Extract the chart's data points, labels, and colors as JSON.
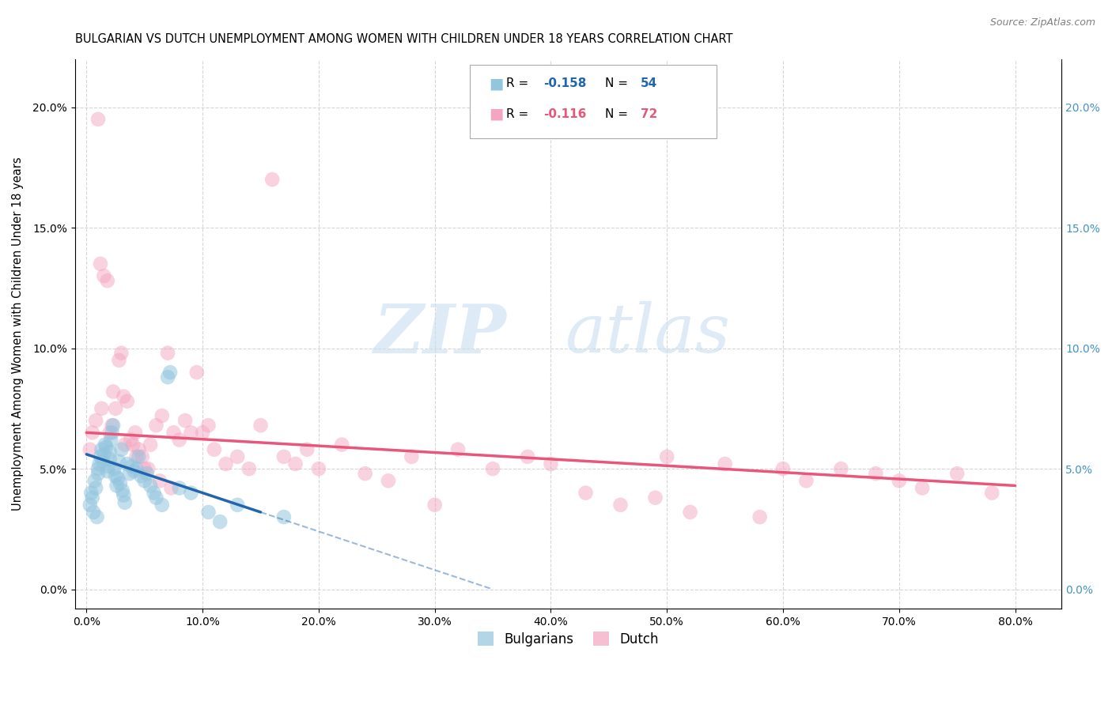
{
  "title": "BULGARIAN VS DUTCH UNEMPLOYMENT AMONG WOMEN WITH CHILDREN UNDER 18 YEARS CORRELATION CHART",
  "source": "Source: ZipAtlas.com",
  "ylabel": "Unemployment Among Women with Children Under 18 years",
  "xlabel_ticks": [
    0,
    10,
    20,
    30,
    40,
    50,
    60,
    70,
    80
  ],
  "ylabel_ticks": [
    0,
    5,
    10,
    15,
    20
  ],
  "xlim": [
    -1,
    84
  ],
  "ylim": [
    -0.8,
    22
  ],
  "blue_color": "#92c5de",
  "pink_color": "#f4a6c0",
  "blue_trend_color": "#2166ac",
  "pink_trend_color": "#e8567a",
  "bg_color": "#ffffff",
  "grid_color": "#cccccc",
  "watermark_zip": "ZIP",
  "watermark_atlas": "atlas",
  "legend_label_blue": "Bulgarians",
  "legend_label_pink": "Dutch",
  "bulgarians_x": [
    0.3,
    0.4,
    0.5,
    0.6,
    0.7,
    0.8,
    0.9,
    1.0,
    1.0,
    1.1,
    1.2,
    1.3,
    1.4,
    1.5,
    1.6,
    1.7,
    1.8,
    1.9,
    2.0,
    2.0,
    2.1,
    2.2,
    2.3,
    2.4,
    2.5,
    2.6,
    2.7,
    2.8,
    2.9,
    3.0,
    3.1,
    3.2,
    3.3,
    3.5,
    3.7,
    3.9,
    4.1,
    4.3,
    4.5,
    4.7,
    5.0,
    5.2,
    5.5,
    5.8,
    6.0,
    6.5,
    7.0,
    7.2,
    8.0,
    9.0,
    10.5,
    11.5,
    13.0,
    17.0
  ],
  "bulgarians_y": [
    3.5,
    4.0,
    3.8,
    3.2,
    4.5,
    4.2,
    3.0,
    5.0,
    4.8,
    5.2,
    5.5,
    5.8,
    5.3,
    5.6,
    6.0,
    5.9,
    4.9,
    5.1,
    5.4,
    5.7,
    6.2,
    6.5,
    6.8,
    5.0,
    4.7,
    4.3,
    4.6,
    5.3,
    4.4,
    5.8,
    4.1,
    3.9,
    3.6,
    5.2,
    4.8,
    5.1,
    4.9,
    5.0,
    5.5,
    4.7,
    4.5,
    4.8,
    4.3,
    4.0,
    3.8,
    3.5,
    8.8,
    9.0,
    4.2,
    4.0,
    3.2,
    2.8,
    3.5,
    3.0
  ],
  "dutch_x": [
    0.5,
    0.8,
    1.0,
    1.2,
    1.5,
    1.8,
    2.0,
    2.2,
    2.5,
    2.8,
    3.0,
    3.2,
    3.5,
    3.8,
    4.0,
    4.2,
    4.5,
    4.8,
    5.0,
    5.5,
    6.0,
    6.5,
    7.0,
    7.5,
    8.0,
    8.5,
    9.0,
    9.5,
    10.0,
    10.5,
    11.0,
    12.0,
    13.0,
    14.0,
    15.0,
    16.0,
    17.0,
    18.0,
    19.0,
    20.0,
    22.0,
    24.0,
    26.0,
    28.0,
    30.0,
    32.0,
    35.0,
    38.0,
    40.0,
    43.0,
    46.0,
    49.0,
    50.0,
    52.0,
    55.0,
    58.0,
    60.0,
    62.0,
    65.0,
    68.0,
    70.0,
    72.0,
    75.0,
    78.0,
    0.3,
    1.3,
    2.3,
    3.3,
    4.3,
    5.3,
    6.3,
    7.3
  ],
  "dutch_y": [
    6.5,
    7.0,
    19.5,
    13.5,
    13.0,
    12.8,
    6.5,
    6.8,
    7.5,
    9.5,
    9.8,
    8.0,
    7.8,
    6.2,
    6.0,
    6.5,
    5.8,
    5.5,
    5.0,
    6.0,
    6.8,
    7.2,
    9.8,
    6.5,
    6.2,
    7.0,
    6.5,
    9.0,
    6.5,
    6.8,
    5.8,
    5.2,
    5.5,
    5.0,
    6.8,
    17.0,
    5.5,
    5.2,
    5.8,
    5.0,
    6.0,
    4.8,
    4.5,
    5.5,
    3.5,
    5.8,
    5.0,
    5.5,
    5.2,
    4.0,
    3.5,
    3.8,
    5.5,
    3.2,
    5.2,
    3.0,
    5.0,
    4.5,
    5.0,
    4.8,
    4.5,
    4.2,
    4.8,
    4.0,
    5.8,
    7.5,
    8.2,
    6.0,
    5.5,
    5.0,
    4.5,
    4.2
  ],
  "blue_trend_x0": 0,
  "blue_trend_y0": 5.6,
  "blue_trend_x1": 15,
  "blue_trend_y1": 3.2,
  "blue_trend_dash_x1": 35,
  "blue_trend_dash_y1": 0.0,
  "pink_trend_x0": 0,
  "pink_trend_y0": 6.5,
  "pink_trend_x1": 80,
  "pink_trend_y1": 4.3
}
